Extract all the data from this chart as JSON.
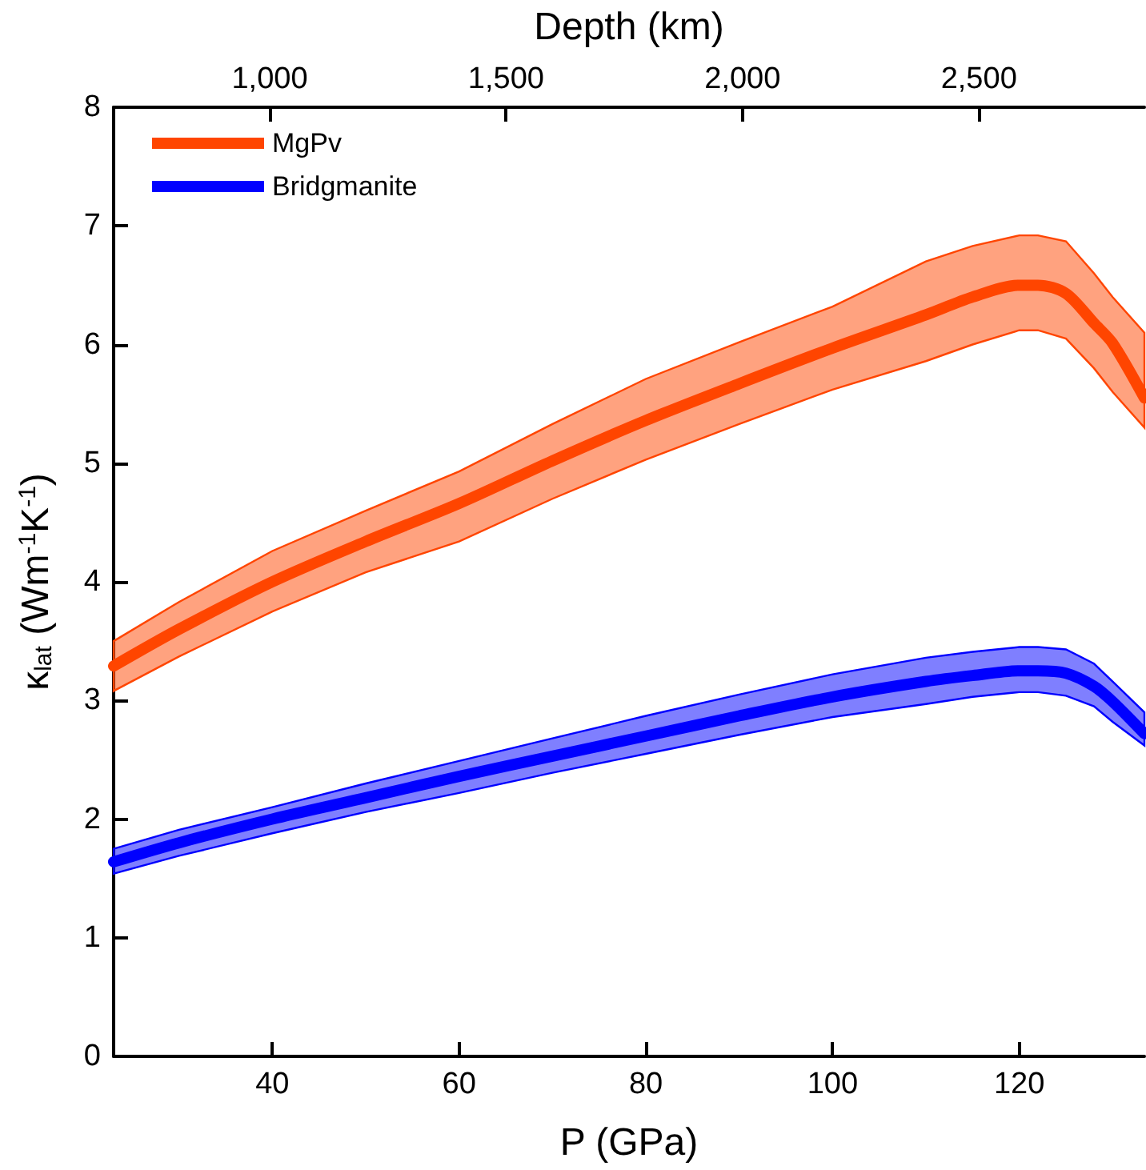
{
  "chart_data": {
    "type": "line",
    "xlabel": "P (GPa)",
    "x2label": "Depth (km)",
    "ylabel": "κ$_{lat}$ (Wm$^{-1}$K$^{-1}$)",
    "x": [
      23,
      30,
      40,
      50,
      60,
      70,
      80,
      90,
      100,
      110,
      115,
      120,
      122,
      125,
      128,
      130,
      133.4
    ],
    "series": [
      {
        "name": "MgPv",
        "color": "#ff4500",
        "values": [
          3.29,
          3.6,
          4.0,
          4.34,
          4.66,
          5.02,
          5.36,
          5.67,
          5.97,
          6.25,
          6.4,
          6.5,
          6.5,
          6.43,
          6.18,
          6.01,
          5.55
        ],
        "lower": [
          3.08,
          3.37,
          3.75,
          4.08,
          4.34,
          4.7,
          5.03,
          5.33,
          5.62,
          5.86,
          6.0,
          6.12,
          6.12,
          6.05,
          5.8,
          5.6,
          5.3
        ],
        "upper": [
          3.5,
          3.83,
          4.26,
          4.6,
          4.93,
          5.33,
          5.71,
          6.02,
          6.32,
          6.7,
          6.83,
          6.92,
          6.92,
          6.87,
          6.6,
          6.4,
          6.1
        ]
      },
      {
        "name": "Bridgmanite",
        "color": "#0000ff",
        "values": [
          1.64,
          1.8,
          2.0,
          2.18,
          2.36,
          2.53,
          2.7,
          2.87,
          3.03,
          3.16,
          3.21,
          3.25,
          3.25,
          3.23,
          3.12,
          2.99,
          2.72
        ],
        "lower": [
          1.54,
          1.69,
          1.88,
          2.06,
          2.22,
          2.39,
          2.55,
          2.71,
          2.86,
          2.97,
          3.03,
          3.07,
          3.07,
          3.04,
          2.95,
          2.82,
          2.62
        ],
        "upper": [
          1.75,
          1.91,
          2.1,
          2.3,
          2.49,
          2.68,
          2.87,
          3.05,
          3.22,
          3.36,
          3.41,
          3.45,
          3.45,
          3.43,
          3.31,
          3.16,
          2.9
        ]
      }
    ],
    "xlim": [
      23,
      133.4
    ],
    "xticks": [
      40,
      60,
      80,
      100,
      120
    ],
    "x2lim": [
      670,
      2850
    ],
    "x2ticks": [
      {
        "value": 1000,
        "label": "1,000"
      },
      {
        "value": 1500,
        "label": "1,500"
      },
      {
        "value": 2000,
        "label": "2,000"
      },
      {
        "value": 2500,
        "label": "2,500"
      }
    ],
    "ylim": [
      0,
      8
    ],
    "yticks": [
      0,
      1,
      2,
      3,
      4,
      5,
      6,
      7,
      8
    ],
    "legend": "top left",
    "line_style": "solid"
  }
}
